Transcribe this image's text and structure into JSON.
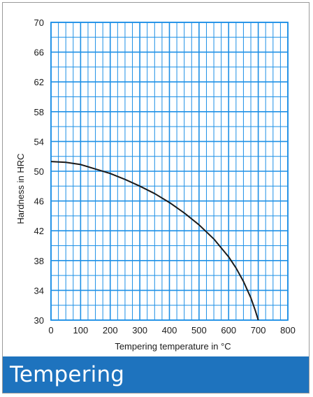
{
  "chart_data": {
    "type": "line",
    "xlabel": "Tempering temperature in °C",
    "ylabel": "Hardness in HRC",
    "xlim": [
      0,
      800
    ],
    "ylim": [
      30,
      70
    ],
    "x_ticks": [
      0,
      100,
      200,
      300,
      400,
      500,
      600,
      700,
      800
    ],
    "y_ticks": [
      30,
      34,
      38,
      42,
      46,
      50,
      54,
      58,
      62,
      66,
      70
    ],
    "x_minor_step": 25,
    "y_minor_step": 2,
    "grid": true,
    "colors": {
      "grid": "#1e90e6",
      "curve": "#1a1a1a"
    },
    "series": [
      {
        "x": [
          0,
          50,
          100,
          150,
          200,
          250,
          300,
          350,
          400,
          450,
          500,
          550,
          600,
          625,
          650,
          675,
          690,
          700
        ],
        "y": [
          51.3,
          51.2,
          50.9,
          50.3,
          49.7,
          48.9,
          48.0,
          47.0,
          45.8,
          44.4,
          42.8,
          40.9,
          38.5,
          37.0,
          35.2,
          33.0,
          31.3,
          30.0
        ]
      }
    ]
  },
  "banner": {
    "title": "Tempering",
    "color": "#1e73be"
  }
}
